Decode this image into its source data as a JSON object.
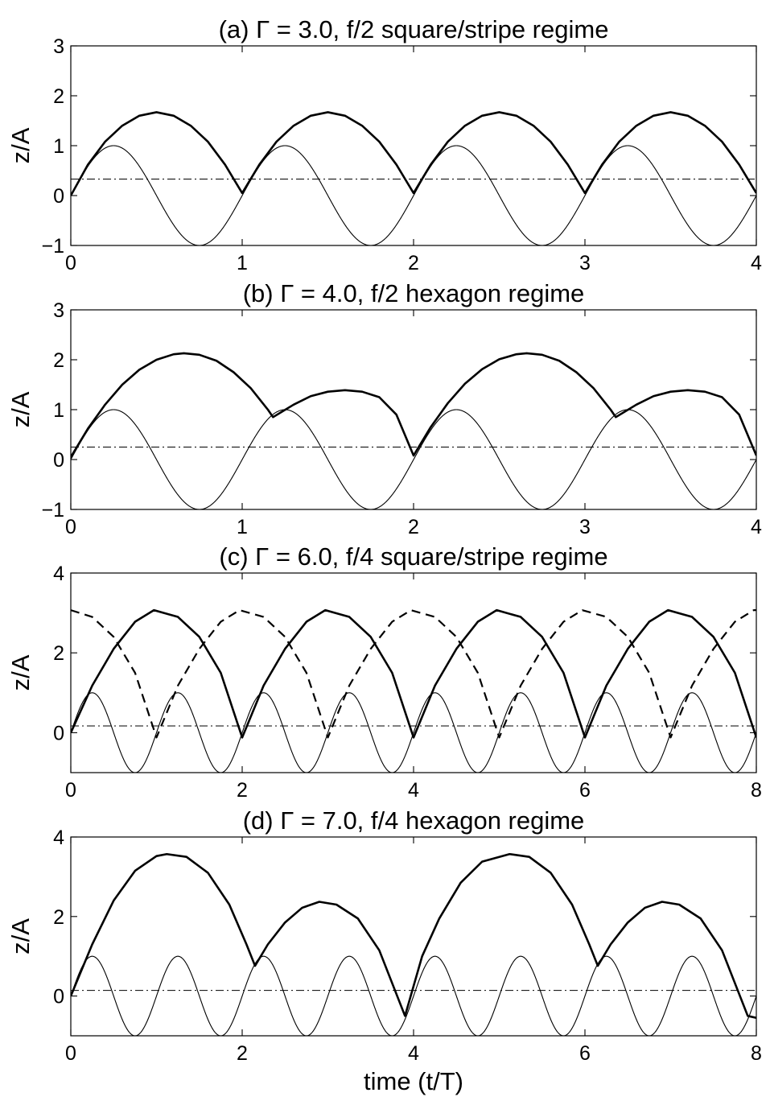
{
  "chart_data": [
    {
      "type": "line",
      "title": "(a) Γ = 3.0, f/2 square/stripe regime",
      "ylabel": "z/A",
      "xlabel": "",
      "xlim": [
        0,
        4
      ],
      "ylim": [
        -1,
        3
      ],
      "xticks": [
        0,
        1,
        2,
        3,
        4
      ],
      "yticks": [
        -1,
        0,
        1,
        2,
        3
      ],
      "xtick_labels": [
        "0",
        "1",
        "2",
        "3",
        "4"
      ],
      "ytick_labels": [
        "−1",
        "0",
        "1",
        "2",
        "3"
      ],
      "series": [
        {
          "style": "thin-solid",
          "kind": "plate",
          "period": 1,
          "amplitude": 1
        },
        {
          "style": "thick-solid",
          "kind": "trajectory",
          "points": [
            [
              0,
              0
            ],
            [
              0.1,
              0.62
            ],
            [
              0.2,
              1.08
            ],
            [
              0.3,
              1.4
            ],
            [
              0.4,
              1.6
            ],
            [
              0.5,
              1.67
            ],
            [
              0.6,
              1.6
            ],
            [
              0.7,
              1.4
            ],
            [
              0.8,
              1.08
            ],
            [
              0.9,
              0.62
            ],
            [
              1.0,
              0.05
            ],
            [
              1.1,
              0.62
            ],
            [
              1.2,
              1.08
            ],
            [
              1.3,
              1.4
            ],
            [
              1.4,
              1.6
            ],
            [
              1.5,
              1.67
            ],
            [
              1.6,
              1.6
            ],
            [
              1.7,
              1.4
            ],
            [
              1.8,
              1.08
            ],
            [
              1.9,
              0.62
            ],
            [
              2.0,
              0.05
            ],
            [
              2.1,
              0.62
            ],
            [
              2.2,
              1.08
            ],
            [
              2.3,
              1.4
            ],
            [
              2.4,
              1.6
            ],
            [
              2.5,
              1.67
            ],
            [
              2.6,
              1.6
            ],
            [
              2.7,
              1.4
            ],
            [
              2.8,
              1.08
            ],
            [
              2.9,
              0.62
            ],
            [
              3.0,
              0.05
            ],
            [
              3.1,
              0.62
            ],
            [
              3.2,
              1.08
            ],
            [
              3.3,
              1.4
            ],
            [
              3.4,
              1.6
            ],
            [
              3.5,
              1.67
            ],
            [
              3.6,
              1.6
            ],
            [
              3.7,
              1.4
            ],
            [
              3.8,
              1.08
            ],
            [
              3.9,
              0.62
            ],
            [
              4.0,
              0.05
            ]
          ]
        },
        {
          "style": "dash-dot",
          "kind": "constant",
          "y": 0.33
        }
      ]
    },
    {
      "type": "line",
      "title": "(b) Γ = 4.0, f/2 hexagon regime",
      "ylabel": "z/A",
      "xlabel": "",
      "xlim": [
        0,
        4
      ],
      "ylim": [
        -1,
        3
      ],
      "xticks": [
        0,
        1,
        2,
        3,
        4
      ],
      "yticks": [
        -1,
        0,
        1,
        2,
        3
      ],
      "xtick_labels": [
        "0",
        "1",
        "2",
        "3",
        "4"
      ],
      "ytick_labels": [
        "−1",
        "0",
        "1",
        "2",
        "3"
      ],
      "series": [
        {
          "style": "thin-solid",
          "kind": "plate",
          "period": 1,
          "amplitude": 1
        },
        {
          "style": "thick-solid",
          "kind": "trajectory",
          "points": [
            [
              0,
              0.05
            ],
            [
              0.1,
              0.62
            ],
            [
              0.2,
              1.1
            ],
            [
              0.3,
              1.5
            ],
            [
              0.4,
              1.8
            ],
            [
              0.5,
              2.0
            ],
            [
              0.6,
              2.11
            ],
            [
              0.66,
              2.13
            ],
            [
              0.75,
              2.1
            ],
            [
              0.85,
              1.98
            ],
            [
              0.95,
              1.75
            ],
            [
              1.05,
              1.43
            ],
            [
              1.15,
              1.0
            ],
            [
              1.18,
              0.85
            ],
            [
              1.3,
              1.1
            ],
            [
              1.4,
              1.27
            ],
            [
              1.5,
              1.36
            ],
            [
              1.6,
              1.39
            ],
            [
              1.7,
              1.36
            ],
            [
              1.8,
              1.25
            ],
            [
              1.9,
              0.9
            ],
            [
              2.0,
              0.08
            ],
            [
              2.1,
              0.65
            ],
            [
              2.2,
              1.13
            ],
            [
              2.3,
              1.52
            ],
            [
              2.4,
              1.81
            ],
            [
              2.5,
              2.01
            ],
            [
              2.6,
              2.11
            ],
            [
              2.66,
              2.13
            ],
            [
              2.75,
              2.1
            ],
            [
              2.85,
              1.98
            ],
            [
              2.95,
              1.75
            ],
            [
              3.05,
              1.43
            ],
            [
              3.15,
              1.0
            ],
            [
              3.18,
              0.85
            ],
            [
              3.3,
              1.1
            ],
            [
              3.4,
              1.27
            ],
            [
              3.5,
              1.36
            ],
            [
              3.6,
              1.39
            ],
            [
              3.7,
              1.36
            ],
            [
              3.8,
              1.25
            ],
            [
              3.9,
              0.9
            ],
            [
              4.0,
              0.08
            ]
          ]
        },
        {
          "style": "dash-dot",
          "kind": "constant",
          "y": 0.25
        }
      ]
    },
    {
      "type": "line",
      "title": "(c) Γ = 6.0, f/4 square/stripe regime",
      "ylabel": "z/A",
      "xlabel": "",
      "xlim": [
        0,
        8
      ],
      "ylim": [
        -1,
        4
      ],
      "xticks": [
        0,
        2,
        4,
        6,
        8
      ],
      "yticks": [
        0,
        2,
        4
      ],
      "xtick_labels": [
        "0",
        "2",
        "4",
        "6",
        "8"
      ],
      "ytick_labels": [
        "0",
        "2",
        "4"
      ],
      "series": [
        {
          "style": "thin-solid",
          "kind": "plate",
          "period": 1,
          "amplitude": 1
        },
        {
          "style": "thick-solid",
          "kind": "trajectory",
          "points": [
            [
              0,
              0.0
            ],
            [
              0.25,
              1.18
            ],
            [
              0.5,
              2.1
            ],
            [
              0.75,
              2.78
            ],
            [
              0.97,
              3.07
            ],
            [
              1.25,
              2.9
            ],
            [
              1.5,
              2.4
            ],
            [
              1.75,
              1.5
            ],
            [
              2.0,
              -0.12
            ],
            [
              2.25,
              1.18
            ],
            [
              2.5,
              2.1
            ],
            [
              2.75,
              2.78
            ],
            [
              2.97,
              3.07
            ],
            [
              3.25,
              2.9
            ],
            [
              3.5,
              2.4
            ],
            [
              3.75,
              1.5
            ],
            [
              4.0,
              -0.12
            ],
            [
              4.25,
              1.18
            ],
            [
              4.5,
              2.1
            ],
            [
              4.75,
              2.78
            ],
            [
              4.97,
              3.07
            ],
            [
              5.25,
              2.9
            ],
            [
              5.5,
              2.4
            ],
            [
              5.75,
              1.5
            ],
            [
              6.0,
              -0.12
            ],
            [
              6.25,
              1.18
            ],
            [
              6.5,
              2.1
            ],
            [
              6.75,
              2.78
            ],
            [
              6.97,
              3.07
            ],
            [
              7.25,
              2.9
            ],
            [
              7.5,
              2.4
            ],
            [
              7.75,
              1.5
            ],
            [
              8.0,
              -0.12
            ]
          ]
        },
        {
          "style": "dashed",
          "kind": "trajectory",
          "points": [
            [
              0,
              3.07
            ],
            [
              0.25,
              2.9
            ],
            [
              0.5,
              2.4
            ],
            [
              0.75,
              1.5
            ],
            [
              1.0,
              -0.12
            ],
            [
              1.25,
              1.18
            ],
            [
              1.5,
              2.1
            ],
            [
              1.75,
              2.78
            ],
            [
              1.97,
              3.07
            ],
            [
              2.25,
              2.9
            ],
            [
              2.5,
              2.4
            ],
            [
              2.75,
              1.5
            ],
            [
              3.0,
              -0.12
            ],
            [
              3.25,
              1.18
            ],
            [
              3.5,
              2.1
            ],
            [
              3.75,
              2.78
            ],
            [
              3.97,
              3.07
            ],
            [
              4.25,
              2.9
            ],
            [
              4.5,
              2.4
            ],
            [
              4.75,
              1.5
            ],
            [
              5.0,
              -0.12
            ],
            [
              5.25,
              1.18
            ],
            [
              5.5,
              2.1
            ],
            [
              5.75,
              2.78
            ],
            [
              5.97,
              3.07
            ],
            [
              6.25,
              2.9
            ],
            [
              6.5,
              2.4
            ],
            [
              6.75,
              1.5
            ],
            [
              7.0,
              -0.12
            ],
            [
              7.25,
              1.18
            ],
            [
              7.5,
              2.1
            ],
            [
              7.75,
              2.78
            ],
            [
              7.97,
              3.07
            ],
            [
              8.0,
              3.07
            ]
          ]
        },
        {
          "style": "dash-dot",
          "kind": "constant",
          "y": 0.17
        }
      ]
    },
    {
      "type": "line",
      "title": "(d) Γ = 7.0, f/4 hexagon regime",
      "ylabel": "z/A",
      "xlabel": "time (t/T)",
      "xlim": [
        0,
        8
      ],
      "ylim": [
        -1,
        4
      ],
      "xticks": [
        0,
        2,
        4,
        6,
        8
      ],
      "yticks": [
        0,
        2,
        4
      ],
      "xtick_labels": [
        "0",
        "2",
        "4",
        "6",
        "8"
      ],
      "ytick_labels": [
        "0",
        "2",
        "4"
      ],
      "series": [
        {
          "style": "thin-solid",
          "kind": "plate",
          "period": 1,
          "amplitude": 1
        },
        {
          "style": "thick-solid",
          "kind": "trajectory",
          "points": [
            [
              0,
              0.0
            ],
            [
              0.25,
              1.3
            ],
            [
              0.5,
              2.4
            ],
            [
              0.75,
              3.15
            ],
            [
              1.0,
              3.52
            ],
            [
              1.12,
              3.57
            ],
            [
              1.35,
              3.5
            ],
            [
              1.6,
              3.1
            ],
            [
              1.85,
              2.3
            ],
            [
              2.05,
              1.3
            ],
            [
              2.15,
              0.76
            ],
            [
              2.3,
              1.3
            ],
            [
              2.5,
              1.85
            ],
            [
              2.7,
              2.22
            ],
            [
              2.9,
              2.37
            ],
            [
              3.1,
              2.3
            ],
            [
              3.35,
              1.95
            ],
            [
              3.6,
              1.15
            ],
            [
              3.9,
              -0.5
            ],
            [
              4.1,
              1.0
            ],
            [
              4.3,
              1.95
            ],
            [
              4.55,
              2.85
            ],
            [
              4.8,
              3.38
            ],
            [
              5.12,
              3.57
            ],
            [
              5.35,
              3.5
            ],
            [
              5.6,
              3.1
            ],
            [
              5.85,
              2.3
            ],
            [
              6.05,
              1.3
            ],
            [
              6.15,
              0.76
            ],
            [
              6.3,
              1.3
            ],
            [
              6.5,
              1.85
            ],
            [
              6.7,
              2.22
            ],
            [
              6.9,
              2.37
            ],
            [
              7.1,
              2.3
            ],
            [
              7.35,
              1.95
            ],
            [
              7.6,
              1.15
            ],
            [
              7.9,
              -0.5
            ],
            [
              8.0,
              -0.55
            ]
          ]
        },
        {
          "style": "dash-dot",
          "kind": "constant",
          "y": 0.14
        }
      ]
    }
  ]
}
